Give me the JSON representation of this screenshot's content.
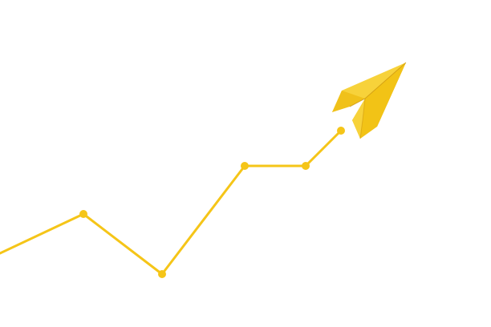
{
  "scene": {
    "background_color": "#ffffff",
    "line_color": "#f5c518",
    "plane_colors": {
      "light": "#f7d23a",
      "mid": "#f2c316",
      "dark": "#e3ae0e",
      "shadow": "#c9920a"
    },
    "icon": "paper-plane-icon"
  }
}
